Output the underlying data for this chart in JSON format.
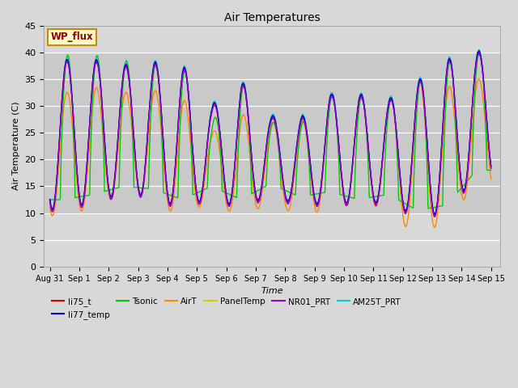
{
  "title": "Air Temperatures",
  "xlabel": "Time",
  "ylabel": "Air Temperature (C)",
  "ylim": [
    0,
    45
  ],
  "site_label": "WP_flux",
  "xtick_labels": [
    "Aug 31",
    "Sep 1",
    "Sep 2",
    "Sep 3",
    "Sep 4",
    "Sep 5",
    "Sep 6",
    "Sep 7",
    "Sep 8",
    "Sep 9",
    "Sep 10",
    "Sep 11",
    "Sep 12",
    "Sep 13",
    "Sep 14",
    "Sep 15"
  ],
  "series_colors": {
    "li75_t": "#cc0000",
    "li77_temp": "#0000cc",
    "Tsonic": "#00cc00",
    "AirT": "#ff8800",
    "PanelTemp": "#cccc00",
    "NR01_PRT": "#9900cc",
    "AM25T_PRT": "#00cccc"
  },
  "plot_bg_color": "#d8d8d8",
  "fig_bg_color": "#d8d8d8",
  "grid_color": "#ffffff",
  "shaded_band_lo": 10,
  "shaded_band_hi": 40,
  "num_days": 15
}
